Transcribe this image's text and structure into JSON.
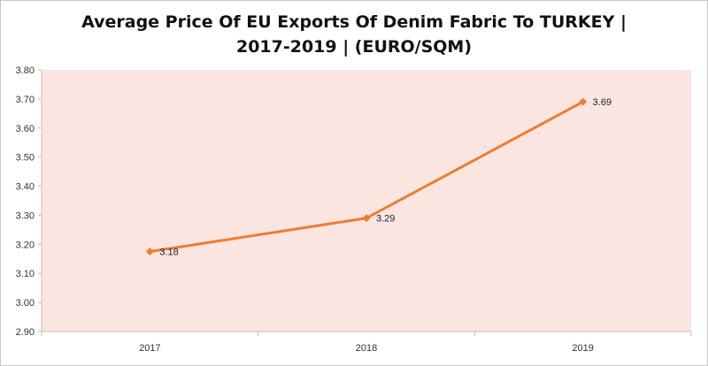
{
  "chart_data": {
    "type": "line",
    "title_line1": "Average Price Of EU Exports Of Denim Fabric To TURKEY |",
    "title_line2": "2017-2019  | (EURO/SQM)",
    "xlabel": "",
    "ylabel": "",
    "categories": [
      "2017",
      "2018",
      "2019"
    ],
    "series": [
      {
        "values": [
          3.175,
          3.29,
          3.69
        ],
        "labels": [
          "3.18",
          "3.29",
          "3.69"
        ]
      }
    ],
    "ylim": [
      2.9,
      3.8
    ],
    "yticks": [
      "3.80",
      "3.70",
      "3.60",
      "3.50",
      "3.40",
      "3.30",
      "3.20",
      "3.10",
      "3.00",
      "2.90"
    ],
    "grid": false,
    "legend": "none",
    "colors": {
      "line": "#ED7D31",
      "plot_background": "#FBE5E1",
      "axis": "#bfbfbf"
    }
  }
}
